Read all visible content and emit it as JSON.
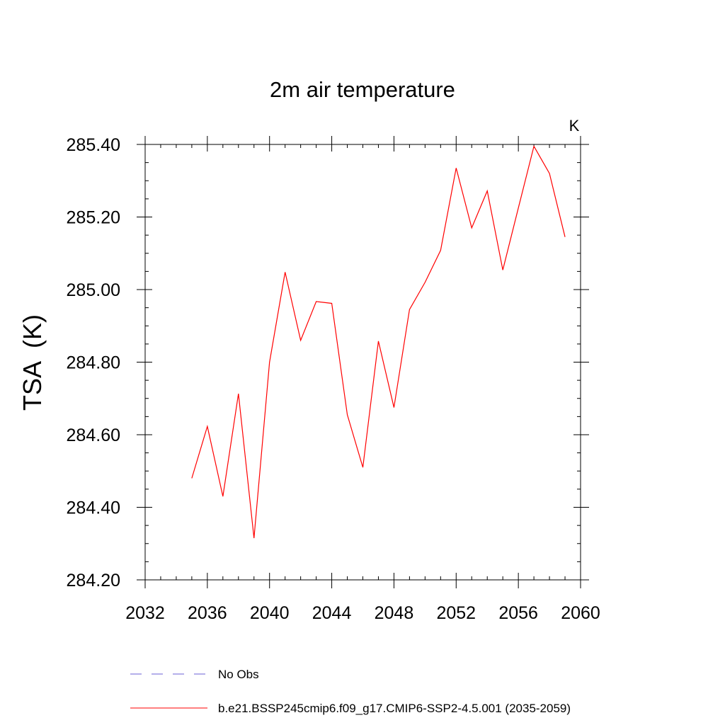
{
  "chart_data": {
    "type": "line",
    "title": "2m air temperature",
    "units_label": "K",
    "xlabel": "",
    "ylabel": "TSA  (K)",
    "xlim": [
      2032,
      2060
    ],
    "ylim": [
      284.2,
      285.4
    ],
    "x_ticks": [
      2032,
      2036,
      2040,
      2044,
      2048,
      2052,
      2056,
      2060
    ],
    "x_tick_labels": [
      "2032",
      "2036",
      "2040",
      "2044",
      "2048",
      "2052",
      "2056",
      "2060"
    ],
    "y_ticks": [
      284.2,
      284.4,
      284.6,
      284.8,
      285.0,
      285.2,
      285.4
    ],
    "y_tick_labels": [
      "284.20",
      "284.40",
      "284.60",
      "284.80",
      "285.00",
      "285.20",
      "285.40"
    ],
    "series": [
      {
        "name": "b.e21.BSSP245cmip6.f09_g17.CMIP6-SSP2-4.5.001 (2035-2059)",
        "color": "#ff0000",
        "dash": "solid",
        "x": [
          2035,
          2036,
          2037,
          2038,
          2039,
          2040,
          2041,
          2042,
          2043,
          2044,
          2045,
          2046,
          2047,
          2048,
          2049,
          2050,
          2051,
          2052,
          2053,
          2054,
          2055,
          2056,
          2057,
          2058,
          2059
        ],
        "values": [
          284.48,
          284.623,
          284.43,
          284.713,
          284.315,
          284.8,
          285.048,
          284.86,
          284.967,
          284.962,
          284.655,
          284.51,
          284.858,
          284.675,
          284.945,
          285.02,
          285.108,
          285.335,
          285.17,
          285.272,
          285.054,
          285.225,
          285.395,
          285.32,
          285.145
        ]
      }
    ],
    "legend": [
      {
        "label": "No Obs",
        "color": "#6b5fd6",
        "dash": "dashed"
      },
      {
        "label": "b.e21.BSSP245cmip6.f09_g17.CMIP6-SSP2-4.5.001 (2035-2059)",
        "color": "#ff0000",
        "dash": "solid"
      }
    ],
    "grid": false,
    "legend_position": "bottom"
  }
}
